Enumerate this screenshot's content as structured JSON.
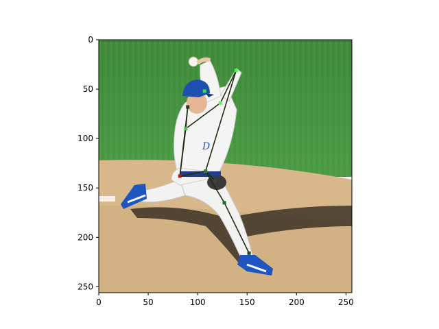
{
  "image": {
    "subject": "baseball-pitcher",
    "colors": {
      "grass": "#3f8a3a",
      "dirt": "#d9b88c",
      "uniform": "#f2f2f2",
      "cap": "#1f4fb0",
      "skeleton_line": "#1f2d12",
      "joint_green": "#2a8a2a",
      "joint_red": "#b02020"
    }
  },
  "axes": {
    "xlim": [
      0,
      256
    ],
    "ylim": [
      256,
      0
    ],
    "xticks": [
      "0",
      "50",
      "100",
      "150",
      "200",
      "250"
    ],
    "yticks": [
      "0",
      "50",
      "100",
      "150",
      "200",
      "250"
    ]
  },
  "keypoints": [
    {
      "id": "head",
      "x": 107,
      "y": 52,
      "color": "#33dd55"
    },
    {
      "id": "wrist-r",
      "x": 139,
      "y": 31,
      "color": "#55ee55"
    },
    {
      "id": "elbow-r",
      "x": 123,
      "y": 64,
      "color": "#66ee66"
    },
    {
      "id": "shoulder-l",
      "x": 88,
      "y": 90,
      "color": "#44cc44"
    },
    {
      "id": "neck",
      "x": 90,
      "y": 68,
      "color": "#333333"
    },
    {
      "id": "hip-r",
      "x": 108,
      "y": 133,
      "color": "#228822"
    },
    {
      "id": "hip-l",
      "x": 82,
      "y": 138,
      "color": "#aa2222"
    },
    {
      "id": "knee-r",
      "x": 127,
      "y": 165,
      "color": "#226622"
    },
    {
      "id": "ankle-r",
      "x": 152,
      "y": 216,
      "color": "#1a4a1a"
    },
    {
      "id": "glove",
      "x": 118,
      "y": 143,
      "color": "#444444"
    }
  ],
  "bones": [
    [
      "wrist-r",
      "elbow-r"
    ],
    [
      "elbow-r",
      "shoulder-l"
    ],
    [
      "neck",
      "shoulder-l"
    ],
    [
      "shoulder-l",
      "hip-l"
    ],
    [
      "neck",
      "hip-l"
    ],
    [
      "wrist-r",
      "hip-r"
    ],
    [
      "hip-r",
      "hip-l"
    ],
    [
      "hip-r",
      "knee-r"
    ],
    [
      "knee-r",
      "ankle-r"
    ],
    [
      "hip-r",
      "glove"
    ]
  ]
}
